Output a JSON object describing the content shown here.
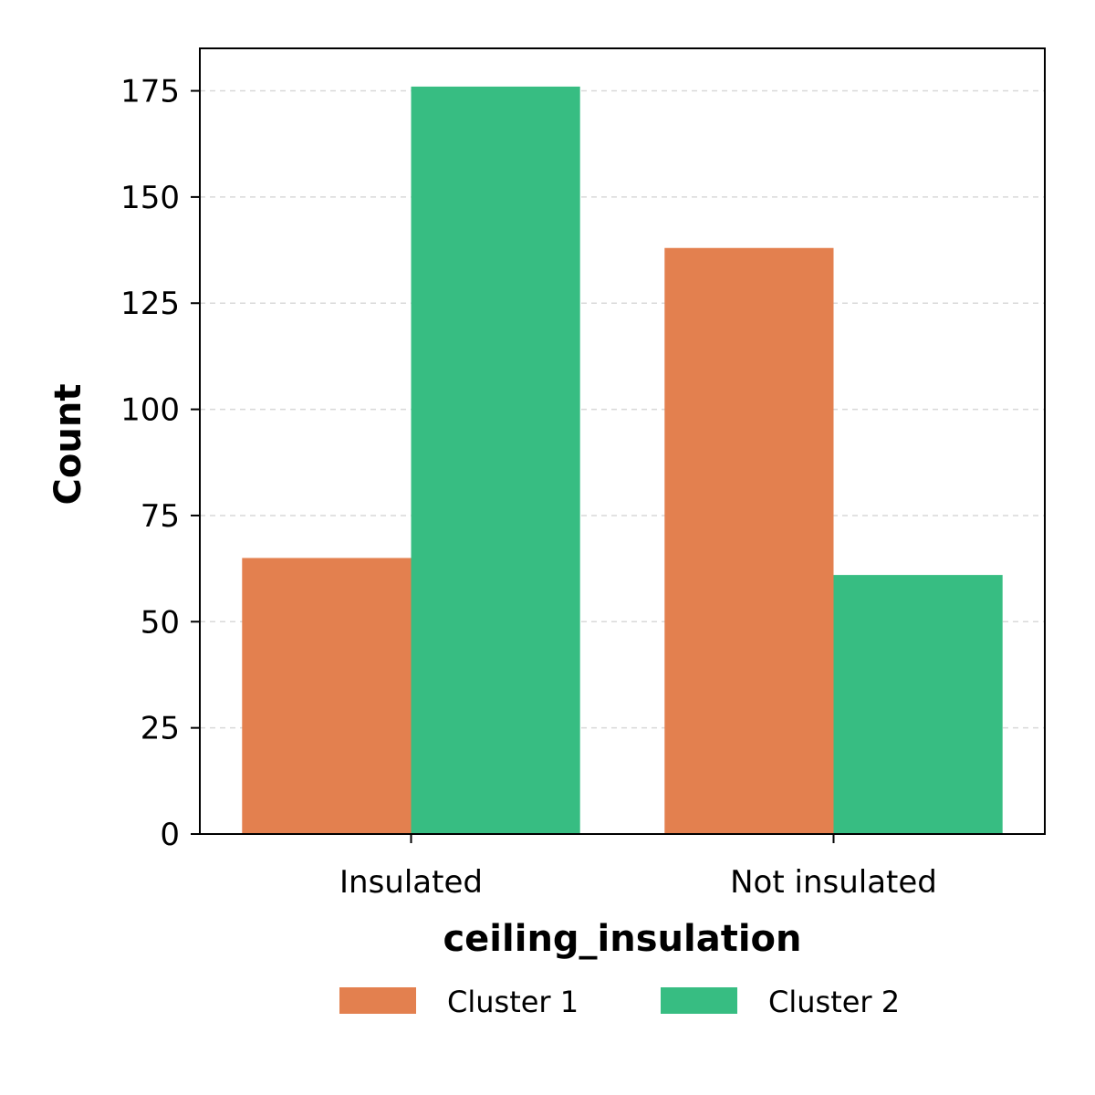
{
  "chart_data": {
    "type": "bar",
    "categories": [
      "Insulated",
      "Not insulated"
    ],
    "series": [
      {
        "name": "Cluster 1",
        "values": [
          65,
          138
        ],
        "color": "#e3804f"
      },
      {
        "name": "Cluster 2",
        "values": [
          176,
          61
        ],
        "color": "#37bd82"
      }
    ],
    "xlabel": "ceiling_insulation",
    "ylabel": "Count",
    "ylim": [
      0,
      185
    ],
    "yticks": [
      0,
      25,
      50,
      75,
      100,
      125,
      150,
      175
    ],
    "grid": {
      "y": true,
      "style": "dashed"
    },
    "legend": {
      "placement": "bottom-center",
      "columns": 2
    }
  }
}
